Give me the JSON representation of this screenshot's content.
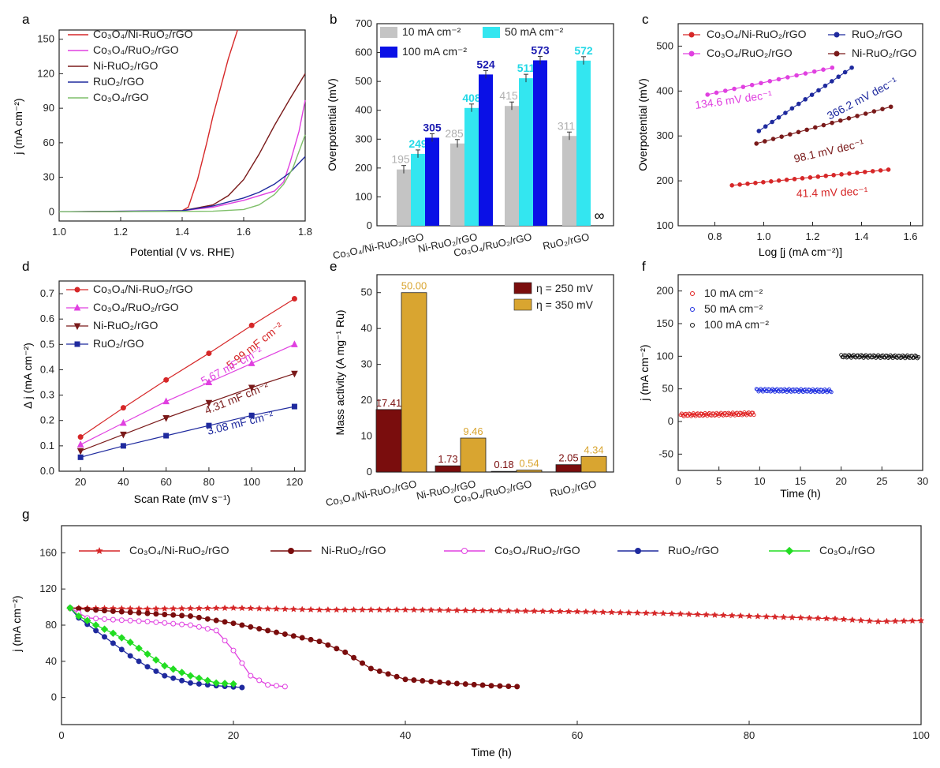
{
  "panels": {
    "a": {
      "letter": "a",
      "xlabel": "Potential (V vs. RHE)",
      "ylabel": "j (mA cm⁻²)",
      "xticks": [
        "1.0",
        "1.2",
        "1.4",
        "1.6",
        "1.8"
      ],
      "yticks": [
        "0",
        "30",
        "60",
        "90",
        "120",
        "150"
      ],
      "legend": [
        "Co₃O₄/Ni-RuO₂/rGO",
        "Co₃O₄/RuO₂/rGO",
        "Ni-RuO₂/rGO",
        "RuO₂/rGO",
        "Co₃O₄/rGO"
      ]
    },
    "b": {
      "letter": "b",
      "ylabel": "Overpotential (mV)",
      "yticks": [
        "0",
        "100",
        "200",
        "300",
        "400",
        "500",
        "600",
        "700"
      ],
      "legend": [
        "10 mA cm⁻²",
        "50 mA cm⁻²",
        "100 mA cm⁻²"
      ],
      "categories": [
        "Co₃O₄/Ni-RuO₂/rGO",
        "Ni-RuO₂/rGO",
        "Co₃O₄/RuO₂/rGO",
        "RuO₂/rGO"
      ],
      "infinity": "∞"
    },
    "c": {
      "letter": "c",
      "xlabel": "Log [j (mA cm⁻²)]",
      "ylabel": "Overpotential (mV)",
      "xticks": [
        "0.8",
        "1.0",
        "1.2",
        "1.4",
        "1.6"
      ],
      "yticks": [
        "100",
        "200",
        "300",
        "400",
        "500"
      ],
      "legend": [
        "Co₃O₄/Ni-RuO₂/rGO",
        "RuO₂/rGO",
        "Co₃O₄/RuO₂/rGO",
        "Ni-RuO₂/rGO"
      ],
      "annotations": [
        "134.6 mV dec⁻¹",
        "366.2 mV dec⁻¹",
        "98.1 mV dec⁻¹",
        "41.4 mV dec⁻¹"
      ]
    },
    "d": {
      "letter": "d",
      "xlabel": "Scan Rate (mV s⁻¹)",
      "ylabel": "Δ j (mA cm⁻²)",
      "xticks": [
        "20",
        "40",
        "60",
        "80",
        "100",
        "120"
      ],
      "yticks": [
        "0.0",
        "0.1",
        "0.2",
        "0.3",
        "0.4",
        "0.5",
        "0.6",
        "0.7"
      ],
      "legend": [
        "Co₃O₄/Ni-RuO₂/rGO",
        "Co₃O₄/RuO₂/rGO",
        "Ni-RuO₂/rGO",
        "RuO₂/rGO"
      ],
      "annotations": [
        "5.99 mF cm⁻²",
        "5.67 mF cm⁻²",
        "4.31 mF cm⁻²",
        "3.08 mF cm⁻²"
      ]
    },
    "e": {
      "letter": "e",
      "ylabel": "Mass activity (A mg⁻¹ Ru)",
      "yticks": [
        "0",
        "10",
        "20",
        "30",
        "40",
        "50"
      ],
      "legend": [
        "η = 250 mV",
        "η = 350 mV"
      ],
      "categories": [
        "Co₃O₄/Ni-RuO₂/rGO",
        "Ni-RuO₂/rGO",
        "Co₃O₄/RuO₂/rGO",
        "RuO₂/rGO"
      ]
    },
    "f": {
      "letter": "f",
      "xlabel": "Time (h)",
      "ylabel": "j (mA cm⁻²)",
      "xticks": [
        "0",
        "5",
        "10",
        "15",
        "20",
        "25",
        "30"
      ],
      "yticks": [
        "-50",
        "0",
        "50",
        "100",
        "150",
        "200"
      ],
      "legend": [
        "10 mA cm⁻²",
        "50 mA cm⁻²",
        "100 mA cm⁻²"
      ]
    },
    "g": {
      "letter": "g",
      "xlabel": "Time (h)",
      "ylabel": "j (mA cm⁻²)",
      "xticks": [
        "0",
        "20",
        "40",
        "60",
        "80",
        "100"
      ],
      "yticks": [
        "0",
        "40",
        "80",
        "120",
        "160"
      ],
      "legend": [
        "Co₃O₄/Ni-RuO₂/rGO",
        "Ni-RuO₂/rGO",
        "Co₃O₄/RuO₂/rGO",
        "RuO₂/rGO",
        "Co₃O₄/rGO"
      ]
    }
  },
  "colors": {
    "red": "#d62728",
    "magenta": "#e040e0",
    "brown": "#7a1a1a",
    "navy": "#1f2a9e",
    "green": "#7fbf6a",
    "gray": "#c4c4c4",
    "cyan": "#33e6f0",
    "blue": "#0a10e6",
    "darkred": "#7a0d0d",
    "gold": "#d9a530",
    "lime": "#22dd22"
  },
  "chart_data": [
    {
      "panel": "a",
      "type": "line",
      "xlabel": "Potential (V vs. RHE)",
      "ylabel": "j (mA cm-2)",
      "xlim": [
        1.0,
        1.8
      ],
      "ylim": [
        -8,
        158
      ],
      "series": [
        {
          "name": "Co3O4/Ni-RuO2/rGO",
          "x": [
            1.0,
            1.2,
            1.4,
            1.42,
            1.45,
            1.48,
            1.5,
            1.52,
            1.55,
            1.58
          ],
          "y": [
            0,
            0.3,
            1,
            4,
            28,
            60,
            83,
            103,
            133,
            158
          ]
        },
        {
          "name": "Ni-RuO2/rGO",
          "x": [
            1.0,
            1.2,
            1.4,
            1.5,
            1.55,
            1.6,
            1.65,
            1.7,
            1.75,
            1.8
          ],
          "y": [
            0,
            0.2,
            1,
            6,
            14,
            28,
            50,
            75,
            98,
            120
          ]
        },
        {
          "name": "Co3O4/RuO2/rGO",
          "x": [
            1.0,
            1.4,
            1.5,
            1.6,
            1.65,
            1.7,
            1.73,
            1.75,
            1.78,
            1.8
          ],
          "y": [
            0,
            1,
            4,
            10,
            14,
            18,
            26,
            42,
            70,
            97
          ]
        },
        {
          "name": "RuO2/rGO",
          "x": [
            1.0,
            1.4,
            1.5,
            1.6,
            1.65,
            1.7,
            1.75,
            1.8
          ],
          "y": [
            0,
            1,
            5,
            12,
            17,
            24,
            34,
            48
          ]
        },
        {
          "name": "Co3O4/rGO",
          "x": [
            1.0,
            1.5,
            1.6,
            1.65,
            1.7,
            1.73,
            1.76,
            1.8
          ],
          "y": [
            0,
            0.5,
            2,
            6,
            15,
            24,
            38,
            67
          ]
        }
      ]
    },
    {
      "panel": "b",
      "type": "bar",
      "ylabel": "Overpotential (mV)",
      "ylim": [
        0,
        700
      ],
      "categories": [
        "Co3O4/Ni-RuO2/rGO",
        "Ni-RuO2/rGO",
        "Co3O4/RuO2/rGO",
        "RuO2/rGO"
      ],
      "series": [
        {
          "name": "10 mA cm-2",
          "values": [
            195,
            285,
            415,
            311
          ],
          "labels": [
            "195",
            "285",
            "415",
            "311"
          ]
        },
        {
          "name": "50 mA cm-2",
          "values": [
            249,
            408,
            511,
            572
          ],
          "labels": [
            "249",
            "408",
            "511",
            "572"
          ]
        },
        {
          "name": "100 mA cm-2",
          "values": [
            305,
            524,
            573,
            null
          ],
          "labels": [
            "305",
            "524",
            "573",
            ""
          ]
        }
      ]
    },
    {
      "panel": "c",
      "type": "scatter",
      "xlabel": "Log [j (mA cm-2)]",
      "ylabel": "Overpotential (mV)",
      "xlim": [
        0.65,
        1.65
      ],
      "ylim": [
        100,
        550
      ],
      "series": [
        {
          "name": "Co3O4/Ni-RuO2/rGO",
          "x0": 0.87,
          "x1": 1.51,
          "y0": 190,
          "y1": 225,
          "n": 21
        },
        {
          "name": "RuO2/rGO",
          "x0": 0.98,
          "x1": 1.36,
          "y0": 311,
          "y1": 452,
          "n": 15
        },
        {
          "name": "Co3O4/RuO2/rGO",
          "x0": 0.77,
          "x1": 1.28,
          "y0": 392,
          "y1": 452,
          "n": 15
        },
        {
          "name": "Ni-RuO2/rGO",
          "x0": 0.97,
          "x1": 1.52,
          "y0": 283,
          "y1": 365,
          "n": 17
        }
      ]
    },
    {
      "panel": "d",
      "type": "line",
      "xlabel": "Scan Rate (mV s-1)",
      "ylabel": "Delta j (mA cm-2)",
      "xlim": [
        10,
        125
      ],
      "ylim": [
        0,
        0.75
      ],
      "x": [
        20,
        40,
        60,
        80,
        100,
        120
      ],
      "series": [
        {
          "name": "Co3O4/Ni-RuO2/rGO",
          "values": [
            0.135,
            0.25,
            0.36,
            0.465,
            0.575,
            0.68
          ]
        },
        {
          "name": "Co3O4/RuO2/rGO",
          "values": [
            0.105,
            0.19,
            0.275,
            0.35,
            0.425,
            0.5
          ]
        },
        {
          "name": "Ni-RuO2/rGO",
          "values": [
            0.08,
            0.145,
            0.21,
            0.27,
            0.33,
            0.385
          ]
        },
        {
          "name": "RuO2/rGO",
          "values": [
            0.055,
            0.1,
            0.14,
            0.18,
            0.22,
            0.255
          ]
        }
      ]
    },
    {
      "panel": "e",
      "type": "bar",
      "ylabel": "Mass activity (A mg-1 Ru)",
      "ylim": [
        0,
        55
      ],
      "categories": [
        "Co3O4/Ni-RuO2/rGO",
        "Ni-RuO2/rGO",
        "Co3O4/RuO2/rGO",
        "RuO2/rGO"
      ],
      "series": [
        {
          "name": "eta = 250 mV",
          "values": [
            17.41,
            1.73,
            0.18,
            2.05
          ],
          "labels": [
            "17.41",
            "1.73",
            "0.18",
            "2.05"
          ]
        },
        {
          "name": "eta = 350 mV",
          "values": [
            50.0,
            9.46,
            0.54,
            4.34
          ],
          "labels": [
            "50.00",
            "9.46",
            "0.54",
            "4.34"
          ]
        }
      ]
    },
    {
      "panel": "f",
      "type": "scatter",
      "xlabel": "Time (h)",
      "ylabel": "j (mA cm-2)",
      "xlim": [
        0,
        30
      ],
      "ylim": [
        -75,
        225
      ],
      "series": [
        {
          "name": "10 mA cm-2",
          "x0": 0.3,
          "x1": 9.3,
          "y0": 10,
          "y1": 12,
          "n": 70
        },
        {
          "name": "50 mA cm-2",
          "x0": 9.6,
          "x1": 18.8,
          "y0": 48,
          "y1": 47,
          "n": 70
        },
        {
          "name": "100 mA cm-2",
          "x0": 20.0,
          "x1": 29.5,
          "y0": 100,
          "y1": 99,
          "n": 70
        }
      ]
    },
    {
      "panel": "g",
      "type": "line",
      "xlabel": "Time (h)",
      "ylabel": "j (mA cm-2)",
      "xlim": [
        0,
        100
      ],
      "ylim": [
        -30,
        190
      ],
      "series": [
        {
          "name": "Co3O4/Ni-RuO2/rGO",
          "x": [
            1,
            10,
            20,
            30,
            40,
            50,
            60,
            70,
            80,
            90,
            95,
            100
          ],
          "y": [
            99,
            98,
            99,
            97,
            97,
            96,
            95,
            93,
            90,
            87,
            84,
            85
          ]
        },
        {
          "name": "Ni-RuO2/rGO",
          "x": [
            1,
            5,
            10,
            15,
            20,
            25,
            30,
            33,
            36,
            40,
            45,
            50,
            53
          ],
          "y": [
            99,
            96,
            93,
            90,
            82,
            72,
            62,
            50,
            32,
            20,
            16,
            13,
            12
          ]
        },
        {
          "name": "Co3O4/RuO2/rGO",
          "x": [
            1,
            3,
            6,
            10,
            15,
            18,
            20,
            22,
            24,
            26
          ],
          "y": [
            99,
            88,
            86,
            84,
            80,
            74,
            52,
            24,
            14,
            12
          ]
        },
        {
          "name": "RuO2/rGO",
          "x": [
            1,
            2,
            4,
            6,
            8,
            10,
            12,
            15,
            18,
            21
          ],
          "y": [
            99,
            88,
            74,
            60,
            46,
            34,
            24,
            16,
            13,
            11
          ]
        },
        {
          "name": "Co3O4/rGO",
          "x": [
            1,
            2,
            4,
            6,
            8,
            10,
            12,
            15,
            18,
            20
          ],
          "y": [
            99,
            90,
            80,
            71,
            61,
            48,
            35,
            24,
            16,
            15
          ]
        }
      ]
    }
  ]
}
